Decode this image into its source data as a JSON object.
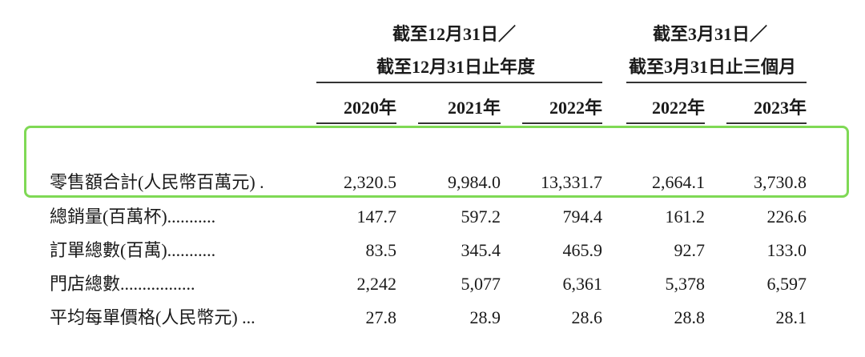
{
  "table": {
    "groups": [
      {
        "lines": [
          "截至12月31日／",
          "截至12月31日止年度"
        ]
      },
      {
        "lines": [
          "截至3月31日／",
          "截至3月31日止三個月"
        ]
      }
    ],
    "columns": [
      "2020年",
      "2021年",
      "2022年",
      "2022年",
      "2023年"
    ],
    "rows": [
      [
        "零售額合計(人民幣百萬元) .",
        "2,320.5",
        "9,984.0",
        "13,331.7",
        "2,664.1",
        "3,730.8"
      ],
      [
        "總銷量(百萬杯)...........",
        "147.7",
        "597.2",
        "794.4",
        "161.2",
        "226.6"
      ],
      [
        "訂單總數(百萬)...........",
        "83.5",
        "345.4",
        "465.9",
        "92.7",
        "133.0"
      ],
      [
        "門店總數.................",
        "2,242",
        "5,077",
        "6,361",
        "5,378",
        "6,597"
      ],
      [
        "平均每單價格(人民幣元) ...",
        "27.8",
        "28.9",
        "28.6",
        "28.8",
        "28.1"
      ]
    ]
  }
}
